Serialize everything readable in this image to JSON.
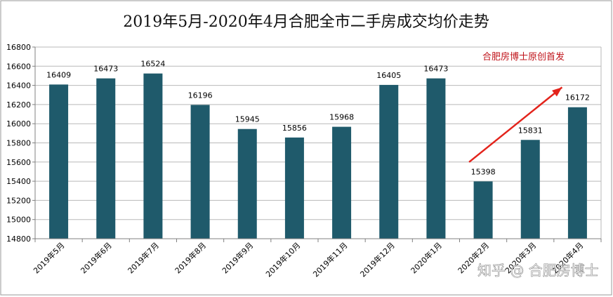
{
  "chart_data": {
    "type": "bar",
    "title": "2019年5月-2020年4月合肥全市二手房成交均价走势",
    "categories": [
      "2019年5月",
      "2019年6月",
      "2019年7月",
      "2019年8月",
      "2019年9月",
      "2019年10月",
      "2019年11月",
      "2019年12月",
      "2020年1月",
      "2020年2月",
      "2020年3月",
      "2020年4月"
    ],
    "values": [
      16409,
      16473,
      16524,
      16196,
      15945,
      15856,
      15968,
      16405,
      16473,
      15398,
      15831,
      16172
    ],
    "ylim": [
      14800,
      16800
    ],
    "yticks": [
      14800,
      15000,
      15200,
      15400,
      15600,
      15800,
      16000,
      16200,
      16400,
      16600,
      16800
    ],
    "grid": true,
    "legend": "none",
    "annotation": "合肥房博士原创首发",
    "trend_arrow": {
      "from_category": "2020年2月",
      "to_category": "2020年4月",
      "color": "#e3231b"
    },
    "watermark": "知乎 @ 合肥房博士"
  },
  "colors": {
    "bar": "#1f5a6b",
    "grid": "#b9b9b9",
    "annotation": "#c0141b",
    "arrow": "#e3231b",
    "frame": "#9a9a9a"
  }
}
